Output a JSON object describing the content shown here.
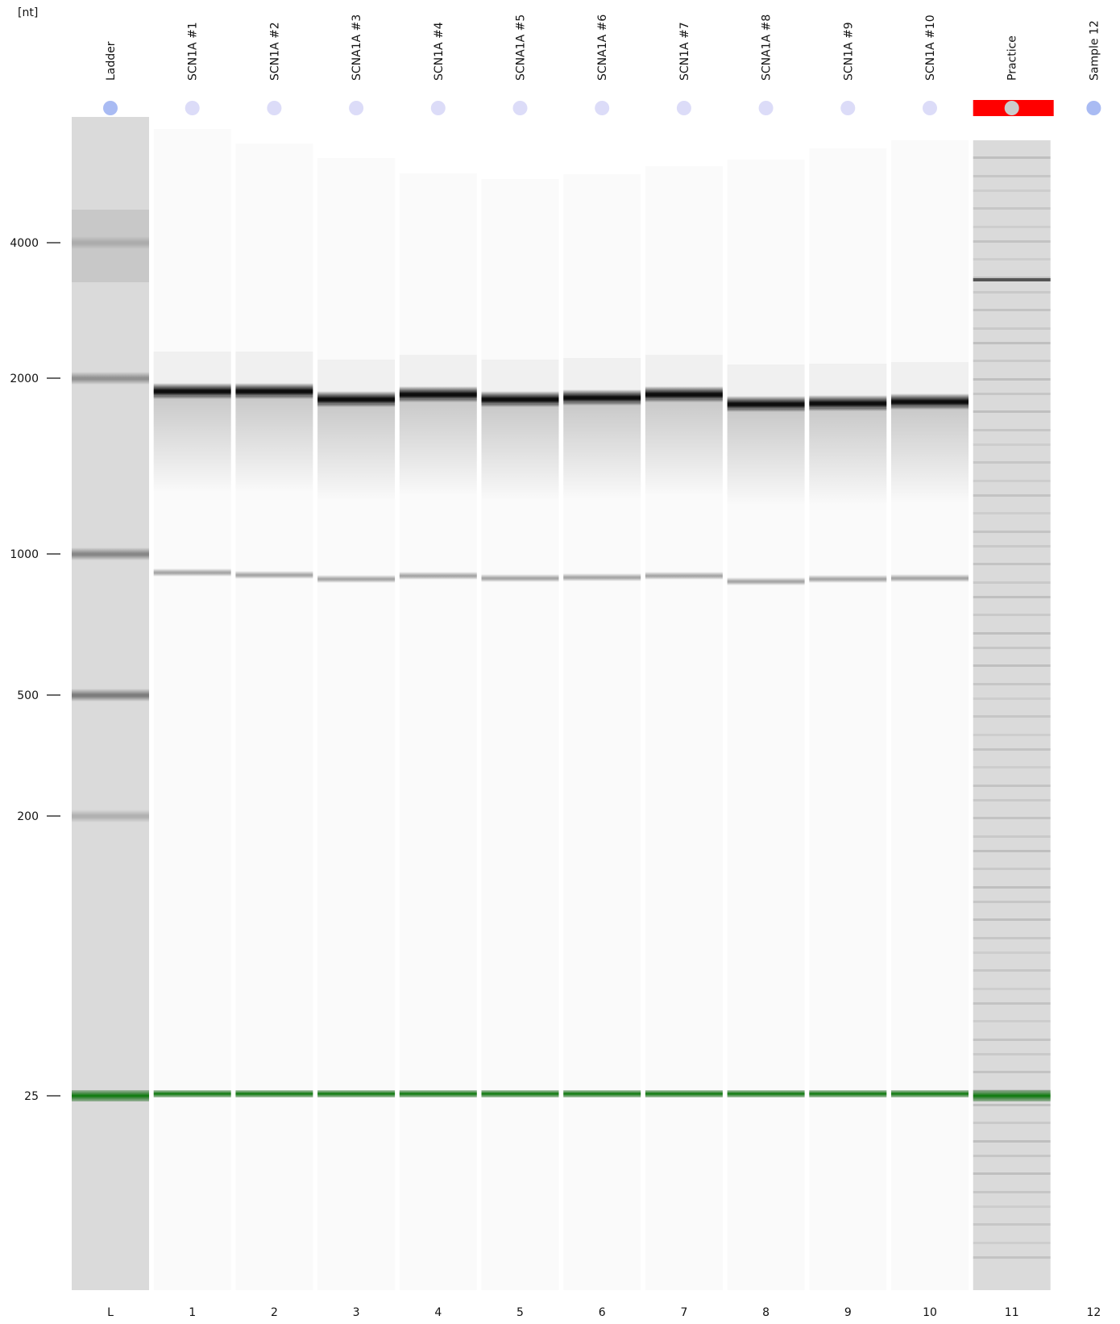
{
  "axis_unit": "[nt]",
  "ticks": [
    "4000",
    "2000",
    "1000",
    "500",
    "200",
    "25"
  ],
  "lanes": [
    {
      "name": "Ladder",
      "number": "L"
    },
    {
      "name": "SCN1A #1",
      "number": "1"
    },
    {
      "name": "SCN1A #2",
      "number": "2"
    },
    {
      "name": "SCNA1A #3",
      "number": "3"
    },
    {
      "name": "SCN1A #4",
      "number": "4"
    },
    {
      "name": "SCNA1A #5",
      "number": "5"
    },
    {
      "name": "SCNA1A #6",
      "number": "6"
    },
    {
      "name": "SCN1A #7",
      "number": "7"
    },
    {
      "name": "SCNA1A #8",
      "number": "8"
    },
    {
      "name": "SCN1A #9",
      "number": "9"
    },
    {
      "name": "SCN1A #10",
      "number": "10"
    },
    {
      "name": "Practice",
      "number": "11",
      "selected": true
    },
    {
      "name": "Sample 12",
      "number": "12"
    }
  ]
}
